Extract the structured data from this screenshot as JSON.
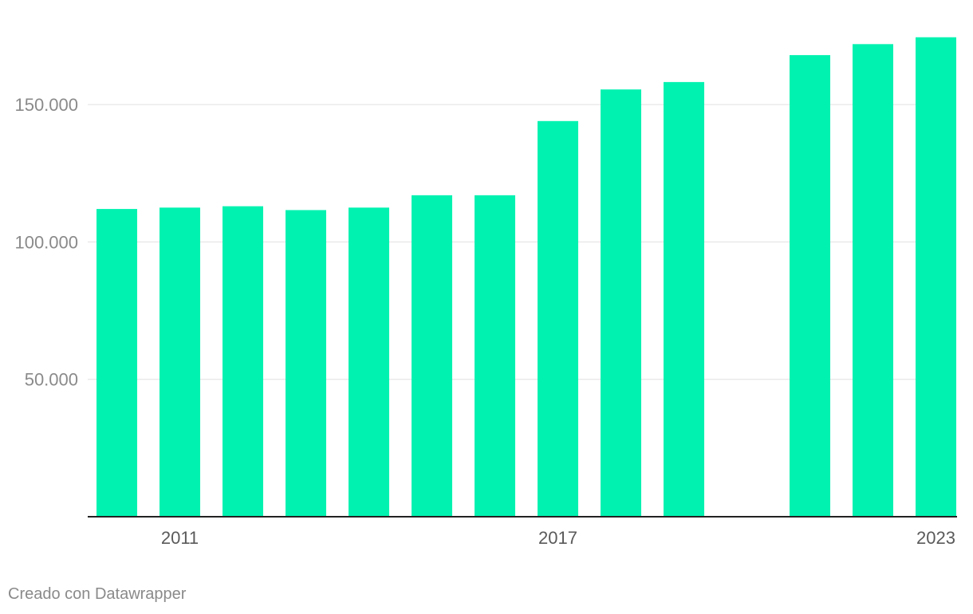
{
  "chart_data": {
    "type": "bar",
    "categories": [
      "2010",
      "2011",
      "2012",
      "2013",
      "2014",
      "2015",
      "2016",
      "2017",
      "2018",
      "2019",
      "2020",
      "2021",
      "2022",
      "2023"
    ],
    "values": [
      112000,
      112500,
      113000,
      111600,
      112500,
      117000,
      117000,
      144000,
      155500,
      158200,
      null,
      168000,
      172000,
      174500
    ],
    "x_tick_labels": [
      "2011",
      "2017",
      "2023"
    ],
    "y_ticks": [
      50000,
      100000,
      150000
    ],
    "y_tick_labels": [
      "50.000",
      "100.000",
      "150.000"
    ],
    "ylim": [
      0,
      175000
    ],
    "grid": true,
    "bar_color": "#00f2b0",
    "title": "",
    "xlabel": "",
    "ylabel": ""
  },
  "footer": {
    "credit": "Creado con Datawrapper"
  }
}
